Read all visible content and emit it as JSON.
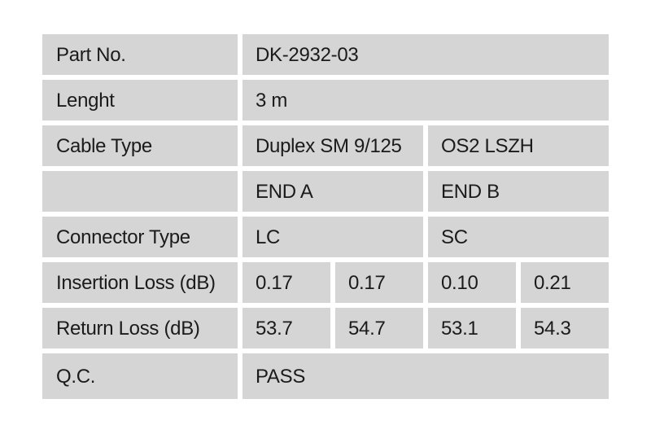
{
  "colors": {
    "cell_bg": "#d5d5d5",
    "gap": "#ffffff",
    "text": "#1b1b1b"
  },
  "table": {
    "rows": [
      {
        "label": "Part No.",
        "cells": [
          {
            "text": "DK-2932-03",
            "span": 4
          }
        ]
      },
      {
        "label": "Lenght",
        "cells": [
          {
            "text": "3 m",
            "span": 4
          }
        ]
      },
      {
        "label": "Cable Type",
        "cells": [
          {
            "text": "Duplex SM 9/125",
            "span": 2
          },
          {
            "text": "OS2 LSZH",
            "span": 2
          }
        ]
      },
      {
        "label": "",
        "cells": [
          {
            "text": "END A",
            "span": 2
          },
          {
            "text": "END B",
            "span": 2
          }
        ]
      },
      {
        "label": "Connector Type",
        "cells": [
          {
            "text": "LC",
            "span": 2
          },
          {
            "text": "SC",
            "span": 2
          }
        ]
      },
      {
        "label": "Insertion Loss (dB)",
        "cells": [
          {
            "text": "0.17",
            "span": 1
          },
          {
            "text": "0.17",
            "span": 1
          },
          {
            "text": "0.10",
            "span": 1
          },
          {
            "text": "0.21",
            "span": 1
          }
        ]
      },
      {
        "label": "Return Loss (dB)",
        "cells": [
          {
            "text": "53.7",
            "span": 1
          },
          {
            "text": "54.7",
            "span": 1
          },
          {
            "text": "53.1",
            "span": 1
          },
          {
            "text": "54.3",
            "span": 1
          }
        ]
      },
      {
        "label": "Q.C.",
        "cells": [
          {
            "text": "PASS",
            "span": 4
          }
        ]
      }
    ]
  }
}
